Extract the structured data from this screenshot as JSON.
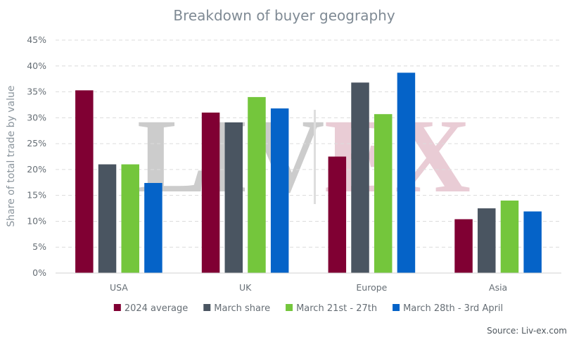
{
  "chart_data": {
    "type": "bar",
    "title": "Breakdown of buyer geography",
    "ylabel": "Share of total trade by value",
    "xlabel": "",
    "ylim": [
      0,
      45
    ],
    "yticks": [
      "0%",
      "5%",
      "10%",
      "15%",
      "20%",
      "25%",
      "30%",
      "35%",
      "40%",
      "45%"
    ],
    "categories": [
      "USA",
      "UK",
      "Europe",
      "Asia"
    ],
    "series": [
      {
        "name": "2024 average",
        "color": "#800033",
        "values": [
          35.3,
          31.0,
          22.5,
          10.4
        ]
      },
      {
        "name": "March share",
        "color": "#4a5561",
        "values": [
          21.0,
          29.1,
          36.8,
          12.5
        ]
      },
      {
        "name": "March 21st - 27th",
        "color": "#74c63c",
        "values": [
          21.0,
          34.0,
          30.7,
          14.0
        ]
      },
      {
        "name": "March 28th - 3rd April",
        "color": "#0563c8",
        "values": [
          17.4,
          31.8,
          38.7,
          11.9
        ]
      }
    ],
    "grid": true,
    "legend_position": "bottom",
    "source": "Source: Liv-ex.com",
    "watermark": {
      "left": "LIV",
      "right": "EX",
      "left_color": "#cccccc",
      "right_color": "#e9ccd5"
    }
  }
}
